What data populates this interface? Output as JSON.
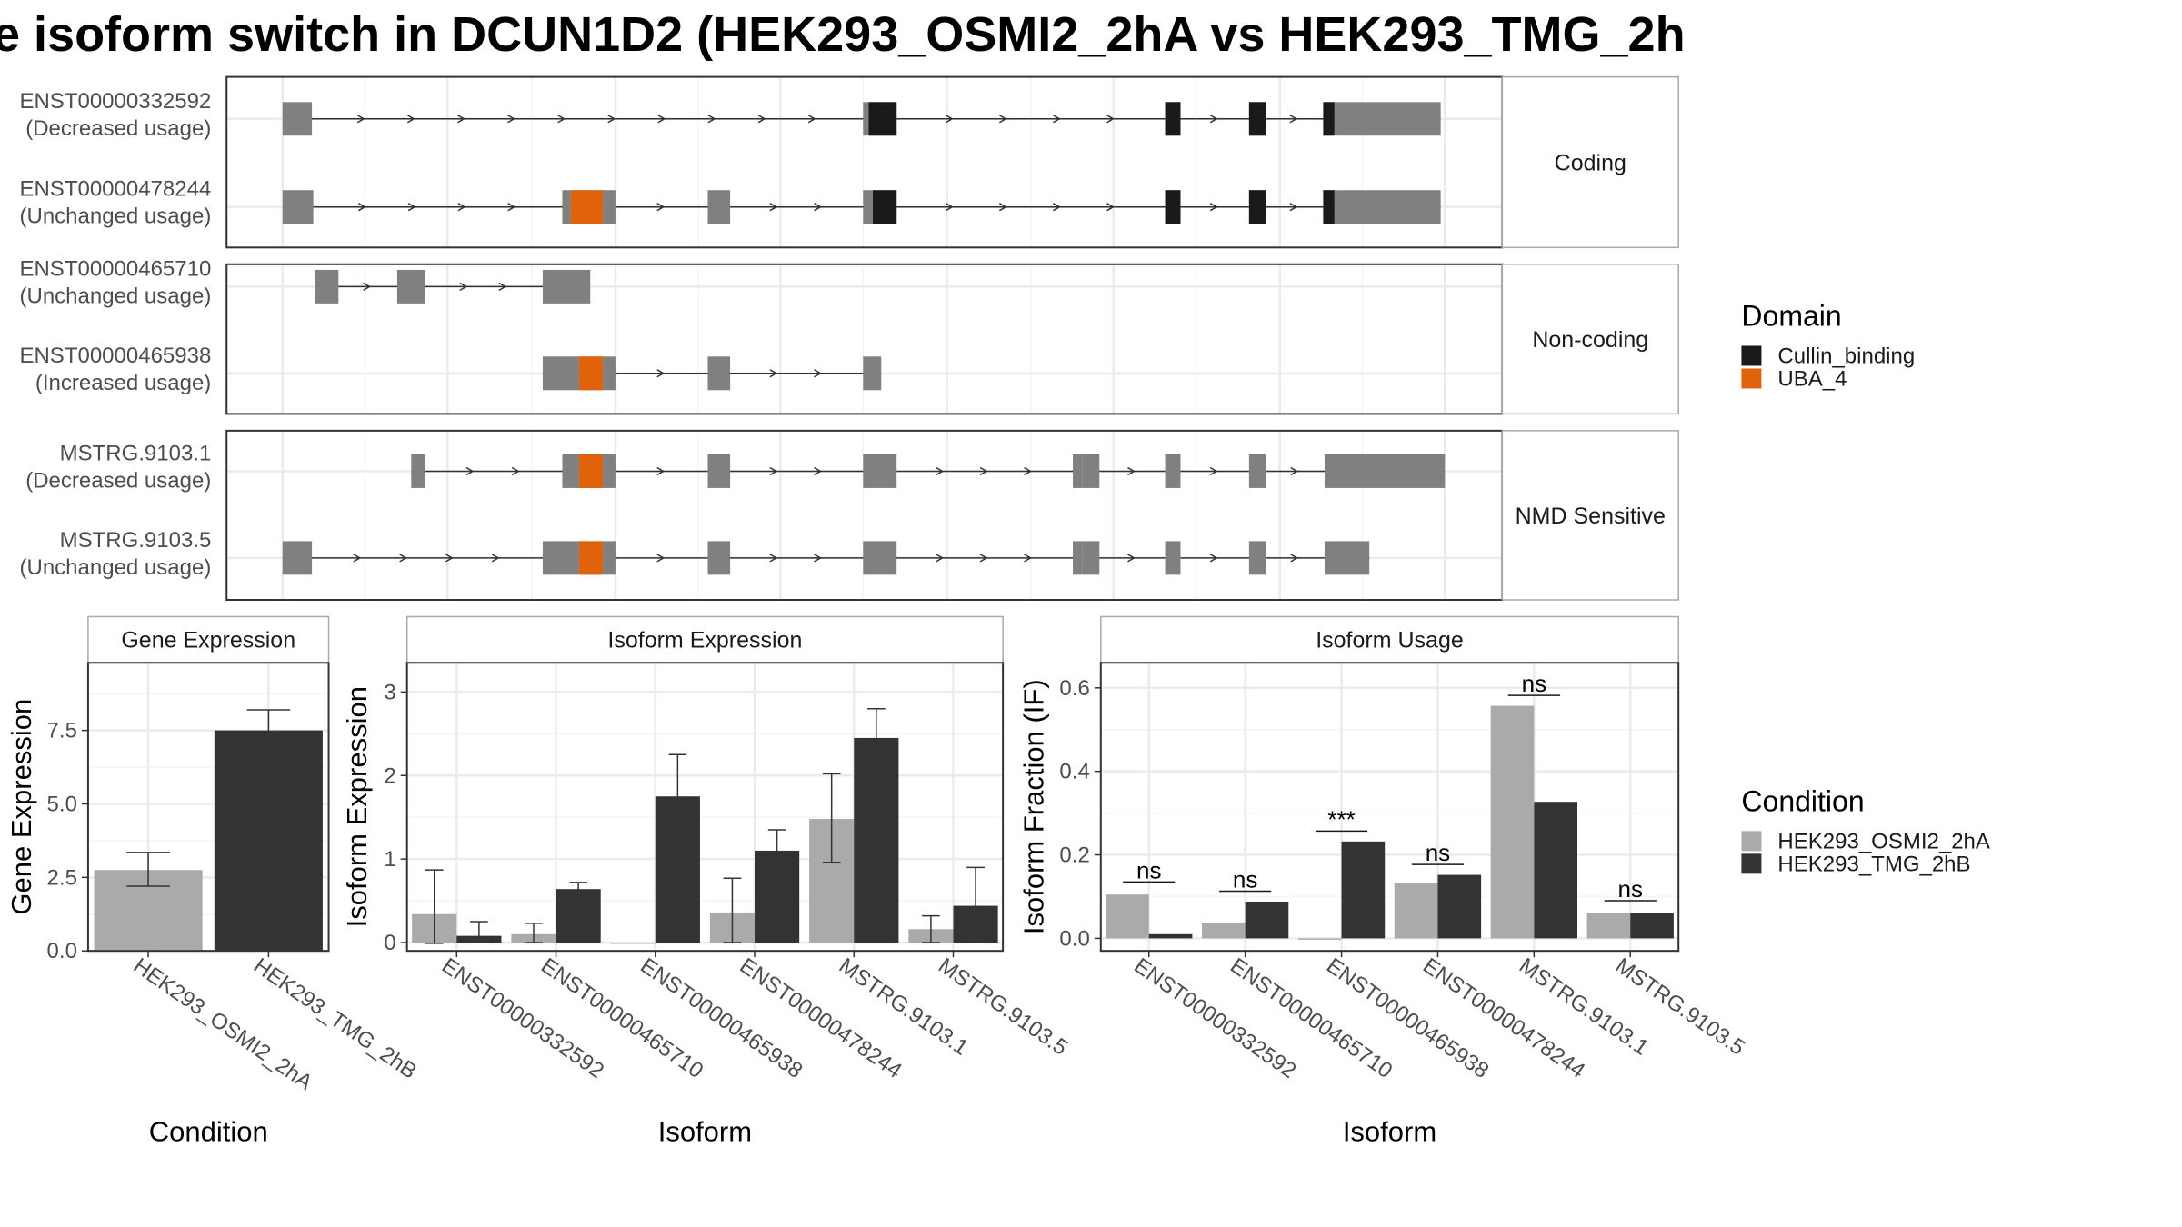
{
  "title": "e isoform switch in DCUN1D2 (HEK293_OSMI2_2hA vs HEK293_TMG_2h",
  "colors": {
    "exon": "#808080",
    "intron": "#333333",
    "cullin": "#1a1a1a",
    "uba": "#e0620b",
    "cond1": "#aaaaaa",
    "cond2": "#333333",
    "panel_border": "#333333",
    "strip_border": "#aaaaaa",
    "grid": "#ebebeb"
  },
  "transcripts": {
    "facets": [
      {
        "label": "Coding",
        "rows": [
          {
            "name": "ENST00000332592",
            "usage": "(Decreased usage)",
            "intron": [
              202,
              1030
            ],
            "exons": [
              [
                202,
                223
              ],
              [
                617,
                621
              ],
              [
                621,
                641
              ],
              [
                833,
                844
              ],
              [
                893,
                905
              ],
              [
                946,
                954
              ],
              [
                954,
                961
              ],
              [
                961,
                1030
              ]
            ],
            "domains": [
              {
                "kind": "cullin",
                "range": [
                  621,
                  641
                ]
              },
              {
                "kind": "cullin",
                "range": [
                  833,
                  844
                ]
              },
              {
                "kind": "cullin",
                "range": [
                  893,
                  905
                ]
              },
              {
                "kind": "cullin",
                "range": [
                  946,
                  954
                ]
              }
            ]
          },
          {
            "name": "ENST00000478244",
            "usage": "(Unchanged usage)",
            "intron": [
              202,
              1030
            ],
            "exons": [
              [
                202,
                223
              ],
              [
                222,
                224
              ],
              [
                402,
                408
              ],
              [
                408,
                431
              ],
              [
                431,
                440
              ],
              [
                506,
                522
              ],
              [
                617,
                624
              ],
              [
                624,
                641
              ],
              [
                833,
                844
              ],
              [
                893,
                905
              ],
              [
                946,
                954
              ],
              [
                954,
                961
              ],
              [
                961,
                1030
              ]
            ],
            "domains": [
              {
                "kind": "uba",
                "range": [
                  408,
                  431
                ]
              },
              {
                "kind": "cullin",
                "range": [
                  624,
                  641
                ]
              },
              {
                "kind": "cullin",
                "range": [
                  833,
                  844
                ]
              },
              {
                "kind": "cullin",
                "range": [
                  893,
                  905
                ]
              },
              {
                "kind": "cullin",
                "range": [
                  946,
                  954
                ]
              }
            ]
          }
        ]
      },
      {
        "label": "Non-coding",
        "rows": [
          {
            "name": "ENST00000465710",
            "usage": "(Unchanged usage)",
            "intron": [
              225,
              388
            ],
            "exons": [
              [
                225,
                242
              ],
              [
                284,
                304
              ],
              [
                388,
                422
              ]
            ],
            "domains": []
          },
          {
            "name": "ENST00000465938",
            "usage": "(Increased usage)",
            "intron": [
              388,
              630
            ],
            "exons": [
              [
                388,
                414
              ],
              [
                414,
                431
              ],
              [
                431,
                440
              ],
              [
                506,
                522
              ],
              [
                617,
                630
              ]
            ],
            "domains": [
              {
                "kind": "uba",
                "range": [
                  414,
                  431
                ]
              }
            ]
          }
        ]
      },
      {
        "label": "NMD Sensitive",
        "rows": [
          {
            "name": "MSTRG.9103.1",
            "usage": "(Decreased usage)",
            "intron": [
              294,
              1033
            ],
            "exons": [
              [
                294,
                304
              ],
              [
                402,
                414
              ],
              [
                414,
                431
              ],
              [
                431,
                440
              ],
              [
                506,
                522
              ],
              [
                617,
                641
              ],
              [
                767,
                774
              ],
              [
                774,
                786
              ],
              [
                833,
                844
              ],
              [
                893,
                905
              ],
              [
                947,
                1033
              ]
            ],
            "domains": [
              {
                "kind": "uba",
                "range": [
                  414,
                  431
                ]
              }
            ]
          },
          {
            "name": "MSTRG.9103.5",
            "usage": "(Unchanged usage)",
            "intron": [
              202,
              979
            ],
            "exons": [
              [
                202,
                223
              ],
              [
                388,
                414
              ],
              [
                414,
                431
              ],
              [
                431,
                440
              ],
              [
                506,
                522
              ],
              [
                617,
                641
              ],
              [
                767,
                774
              ],
              [
                774,
                786
              ],
              [
                833,
                844
              ],
              [
                893,
                905
              ],
              [
                947,
                979
              ]
            ],
            "domains": [
              {
                "kind": "uba",
                "range": [
                  414,
                  431
                ]
              }
            ]
          }
        ]
      }
    ]
  },
  "legend_domain": {
    "title": "Domain",
    "items": [
      {
        "label": "Cullin_binding",
        "color": "#1a1a1a"
      },
      {
        "label": "UBA_4",
        "color": "#e0620b"
      }
    ]
  },
  "legend_condition": {
    "title": "Condition",
    "items": [
      {
        "label": "HEK293_OSMI2_2hA",
        "color": "#aaaaaa"
      },
      {
        "label": "HEK293_TMG_2hB",
        "color": "#333333"
      }
    ]
  },
  "chart_data": [
    {
      "type": "bar",
      "title": "Gene Expression",
      "xlabel": "Condition",
      "ylabel": "Gene Expression",
      "ylim": [
        0,
        9.8
      ],
      "yticks": [
        "0.0",
        "2.5",
        "5.0",
        "7.5"
      ],
      "ytick_values": [
        0,
        2.5,
        5,
        7.5
      ],
      "categories": [
        "HEK293_OSMI2_2hA",
        "HEK293_TMG_2hB"
      ],
      "values": [
        2.75,
        7.5
      ],
      "error_low": [
        2.2,
        6.85
      ],
      "error_high": [
        3.35,
        8.2
      ]
    },
    {
      "type": "bar",
      "title": "Isoform Expression",
      "xlabel": "Isoform",
      "ylabel": "Isoform Expression",
      "ylim": [
        -0.1,
        3.35
      ],
      "yticks": [
        "0",
        "1",
        "2",
        "3"
      ],
      "ytick_values": [
        0,
        1,
        2,
        3
      ],
      "categories": [
        "ENST00000332592",
        "ENST00000465710",
        "ENST00000465938",
        "ENST00000478244",
        "MSTRG.9103.1",
        "MSTRG.9103.5"
      ],
      "series": [
        {
          "name": "HEK293_OSMI2_2hA",
          "values": [
            0.34,
            0.1,
            0.0,
            0.36,
            1.48,
            0.16
          ],
          "error_low": [
            -0.01,
            0.0,
            0.0,
            0.0,
            0.96,
            0.0
          ],
          "error_high": [
            0.87,
            0.23,
            0.0,
            0.77,
            2.02,
            0.32
          ]
        },
        {
          "name": "HEK293_TMG_2hB",
          "values": [
            0.08,
            0.64,
            1.75,
            1.1,
            2.45,
            0.44
          ],
          "error_low": [
            0.0,
            0.57,
            1.24,
            0.9,
            2.1,
            0.0
          ],
          "error_high": [
            0.25,
            0.72,
            2.25,
            1.35,
            2.8,
            0.9
          ]
        }
      ]
    },
    {
      "type": "bar",
      "title": "Isoform Usage",
      "xlabel": "Isoform",
      "ylabel": "Isoform Fraction (IF)",
      "ylim": [
        -0.03,
        0.66
      ],
      "yticks": [
        "0.0",
        "0.2",
        "0.4",
        "0.6"
      ],
      "ytick_values": [
        0,
        0.2,
        0.4,
        0.6
      ],
      "categories": [
        "ENST00000332592",
        "ENST00000465710",
        "ENST00000465938",
        "ENST00000478244",
        "MSTRG.9103.1",
        "MSTRG.9103.5"
      ],
      "series": [
        {
          "name": "HEK293_OSMI2_2hA",
          "values": [
            0.105,
            0.038,
            0.0,
            0.133,
            0.557,
            0.06
          ]
        },
        {
          "name": "HEK293_TMG_2hB",
          "values": [
            0.01,
            0.088,
            0.232,
            0.152,
            0.327,
            0.06
          ]
        }
      ],
      "significance": [
        "ns",
        "ns",
        "***",
        "ns",
        "ns",
        "ns"
      ],
      "significance_y": [
        0.135,
        0.113,
        0.257,
        0.177,
        0.582,
        0.09
      ]
    }
  ]
}
